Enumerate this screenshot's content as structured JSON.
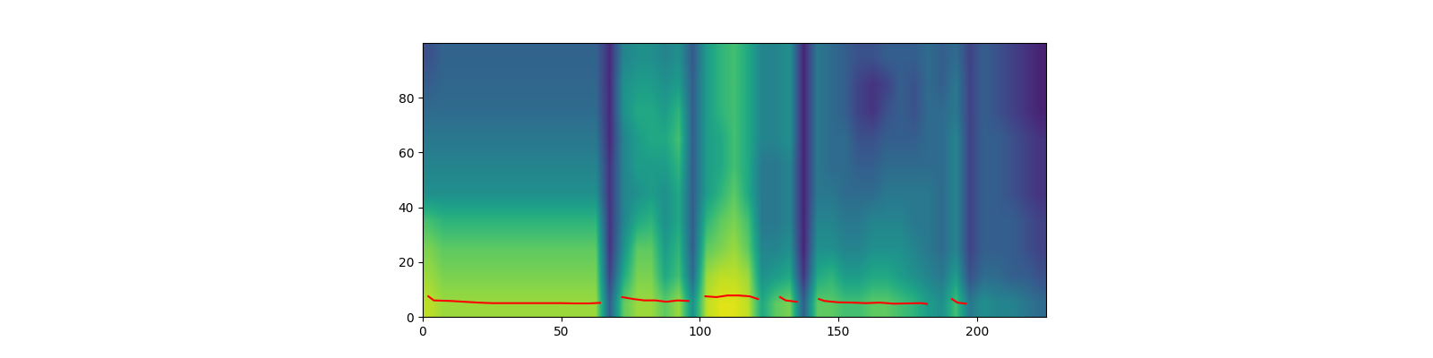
{
  "chart_data": {
    "type": "heatmap",
    "xlim": [
      0,
      225
    ],
    "ylim": [
      0,
      100
    ],
    "xticks": [
      0,
      50,
      100,
      150,
      200
    ],
    "yticks": [
      0,
      20,
      40,
      60,
      80
    ],
    "clim": [
      0,
      1
    ],
    "cells": [
      [
        0.9,
        0.85,
        0.8,
        0.7,
        0.5,
        0.45,
        0.4,
        0.35,
        0.3,
        0.25
      ],
      [
        0.85,
        0.8,
        0.75,
        0.65,
        0.5,
        0.45,
        0.4,
        0.35,
        0.33,
        0.32
      ],
      [
        0.85,
        0.8,
        0.75,
        0.65,
        0.5,
        0.45,
        0.4,
        0.35,
        0.33,
        0.32
      ],
      [
        0.85,
        0.8,
        0.75,
        0.65,
        0.5,
        0.45,
        0.4,
        0.35,
        0.33,
        0.32
      ],
      [
        0.85,
        0.8,
        0.75,
        0.65,
        0.5,
        0.45,
        0.4,
        0.35,
        0.33,
        0.32
      ],
      [
        0.85,
        0.8,
        0.75,
        0.65,
        0.5,
        0.45,
        0.4,
        0.35,
        0.33,
        0.32
      ],
      [
        0.85,
        0.8,
        0.75,
        0.65,
        0.5,
        0.45,
        0.4,
        0.35,
        0.33,
        0.32
      ],
      [
        0.85,
        0.8,
        0.75,
        0.65,
        0.5,
        0.45,
        0.4,
        0.35,
        0.33,
        0.32
      ],
      [
        0.85,
        0.8,
        0.75,
        0.65,
        0.5,
        0.45,
        0.4,
        0.35,
        0.33,
        0.32
      ],
      [
        0.85,
        0.8,
        0.75,
        0.65,
        0.5,
        0.45,
        0.4,
        0.35,
        0.33,
        0.32
      ],
      [
        0.85,
        0.8,
        0.75,
        0.65,
        0.5,
        0.45,
        0.4,
        0.35,
        0.33,
        0.32
      ],
      [
        0.85,
        0.8,
        0.75,
        0.65,
        0.5,
        0.45,
        0.4,
        0.35,
        0.33,
        0.32
      ],
      [
        0.85,
        0.8,
        0.75,
        0.65,
        0.5,
        0.45,
        0.4,
        0.35,
        0.33,
        0.32
      ],
      [
        0.3,
        0.2,
        0.15,
        0.15,
        0.15,
        0.15,
        0.12,
        0.12,
        0.12,
        0.12
      ],
      [
        0.75,
        0.6,
        0.5,
        0.45,
        0.45,
        0.45,
        0.45,
        0.5,
        0.5,
        0.45
      ],
      [
        0.85,
        0.8,
        0.75,
        0.6,
        0.5,
        0.55,
        0.55,
        0.6,
        0.55,
        0.5
      ],
      [
        0.85,
        0.8,
        0.75,
        0.65,
        0.55,
        0.55,
        0.6,
        0.6,
        0.55,
        0.5
      ],
      [
        0.75,
        0.6,
        0.55,
        0.5,
        0.5,
        0.55,
        0.6,
        0.55,
        0.5,
        0.45
      ],
      [
        0.85,
        0.7,
        0.65,
        0.6,
        0.6,
        0.65,
        0.7,
        0.65,
        0.55,
        0.5
      ],
      [
        0.5,
        0.35,
        0.3,
        0.3,
        0.3,
        0.3,
        0.3,
        0.3,
        0.3,
        0.28
      ],
      [
        0.9,
        0.85,
        0.75,
        0.65,
        0.55,
        0.55,
        0.55,
        0.55,
        0.55,
        0.55
      ],
      [
        0.95,
        0.9,
        0.8,
        0.75,
        0.65,
        0.6,
        0.6,
        0.65,
        0.65,
        0.65
      ],
      [
        0.95,
        0.9,
        0.85,
        0.8,
        0.75,
        0.7,
        0.7,
        0.7,
        0.7,
        0.7
      ],
      [
        0.9,
        0.85,
        0.75,
        0.7,
        0.6,
        0.6,
        0.6,
        0.6,
        0.6,
        0.6
      ],
      [
        0.6,
        0.5,
        0.45,
        0.4,
        0.4,
        0.4,
        0.45,
        0.45,
        0.45,
        0.45
      ],
      [
        0.75,
        0.55,
        0.45,
        0.4,
        0.4,
        0.4,
        0.45,
        0.45,
        0.45,
        0.45
      ],
      [
        0.8,
        0.6,
        0.5,
        0.45,
        0.45,
        0.45,
        0.5,
        0.5,
        0.5,
        0.5
      ],
      [
        0.3,
        0.15,
        0.1,
        0.1,
        0.1,
        0.1,
        0.1,
        0.1,
        0.1,
        0.1
      ],
      [
        0.75,
        0.6,
        0.5,
        0.45,
        0.4,
        0.4,
        0.4,
        0.4,
        0.4,
        0.4
      ],
      [
        0.75,
        0.65,
        0.5,
        0.45,
        0.4,
        0.35,
        0.35,
        0.35,
        0.35,
        0.35
      ],
      [
        0.7,
        0.55,
        0.45,
        0.4,
        0.35,
        0.35,
        0.35,
        0.3,
        0.3,
        0.3
      ],
      [
        0.7,
        0.55,
        0.45,
        0.4,
        0.35,
        0.3,
        0.25,
        0.2,
        0.2,
        0.25
      ],
      [
        0.75,
        0.6,
        0.5,
        0.45,
        0.35,
        0.3,
        0.25,
        0.15,
        0.15,
        0.25
      ],
      [
        0.75,
        0.6,
        0.5,
        0.45,
        0.4,
        0.35,
        0.3,
        0.25,
        0.2,
        0.3
      ],
      [
        0.7,
        0.55,
        0.5,
        0.45,
        0.4,
        0.35,
        0.3,
        0.3,
        0.3,
        0.3
      ],
      [
        0.65,
        0.5,
        0.45,
        0.4,
        0.4,
        0.35,
        0.3,
        0.25,
        0.25,
        0.3
      ],
      [
        0.55,
        0.45,
        0.4,
        0.4,
        0.4,
        0.35,
        0.35,
        0.35,
        0.35,
        0.35
      ],
      [
        0.5,
        0.4,
        0.35,
        0.35,
        0.35,
        0.35,
        0.35,
        0.35,
        0.3,
        0.3
      ],
      [
        0.7,
        0.55,
        0.45,
        0.45,
        0.45,
        0.45,
        0.45,
        0.4,
        0.4,
        0.35
      ],
      [
        0.4,
        0.25,
        0.2,
        0.2,
        0.2,
        0.2,
        0.2,
        0.2,
        0.2,
        0.2
      ],
      [
        0.5,
        0.35,
        0.3,
        0.3,
        0.3,
        0.3,
        0.3,
        0.3,
        0.3,
        0.3
      ],
      [
        0.45,
        0.35,
        0.3,
        0.3,
        0.3,
        0.3,
        0.3,
        0.25,
        0.25,
        0.25
      ],
      [
        0.45,
        0.3,
        0.3,
        0.3,
        0.25,
        0.25,
        0.25,
        0.2,
        0.2,
        0.2
      ],
      [
        0.4,
        0.3,
        0.25,
        0.25,
        0.2,
        0.2,
        0.2,
        0.15,
        0.15,
        0.15
      ],
      [
        0.35,
        0.25,
        0.2,
        0.2,
        0.15,
        0.15,
        0.15,
        0.1,
        0.1,
        0.1
      ]
    ],
    "series": [
      {
        "type": "line",
        "color": "#ff0000",
        "x": [
          2,
          4,
          10,
          15,
          20,
          25,
          30,
          35,
          40,
          45,
          50,
          55,
          60,
          64,
          68,
          72,
          76,
          80,
          84,
          88,
          92,
          96,
          99,
          102,
          106,
          110,
          114,
          118,
          121,
          125,
          129,
          131,
          135,
          139,
          143,
          145,
          150,
          155,
          160,
          165,
          170,
          175,
          180,
          182,
          187,
          191,
          193,
          196
        ],
        "values": [
          7.5,
          6,
          5.8,
          5.5,
          5.2,
          5,
          5,
          5,
          5,
          5,
          5,
          4.9,
          4.9,
          5.1,
          null,
          7.2,
          6.5,
          6,
          6,
          5.5,
          6,
          5.8,
          null,
          7.5,
          7.2,
          7.8,
          7.8,
          7.5,
          6.5,
          null,
          7.2,
          6,
          5.5,
          null,
          6.5,
          5.8,
          5.3,
          5.2,
          5,
          5.2,
          4.8,
          4.9,
          5,
          4.7,
          null,
          6.5,
          5.2,
          4.8
        ]
      }
    ]
  }
}
